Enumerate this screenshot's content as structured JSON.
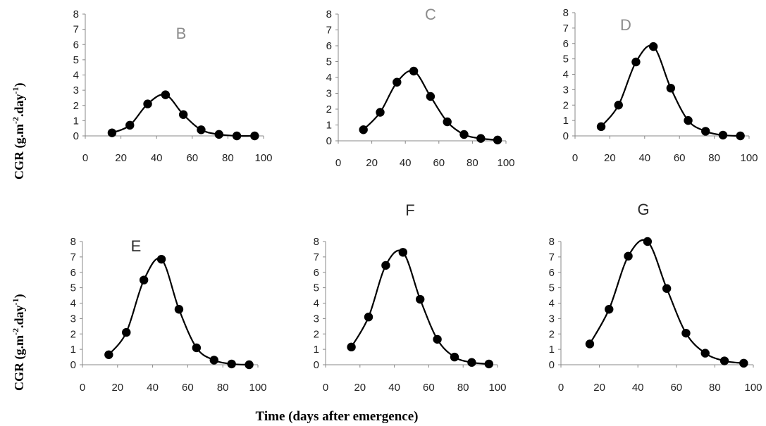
{
  "figure": {
    "ylabel": {
      "base": "CGR (g.m",
      "exp1": "-2",
      "mid": ".day",
      "exp2": "-1",
      "end": ")"
    },
    "xlabel": "Time (days after emergence)",
    "colors": {
      "line": "#000000",
      "marker": "#000000",
      "axis": "#888888",
      "label_gray": "#8c8c8c",
      "label_dark": "#2a2a2a"
    }
  },
  "chart_data": [
    {
      "type": "line",
      "title": "B",
      "x": [
        15,
        25,
        35,
        45,
        55,
        65,
        75,
        85,
        95
      ],
      "values": [
        0.2,
        0.7,
        2.1,
        2.7,
        1.4,
        0.4,
        0.1,
        0.0,
        0.0
      ],
      "xlim": [
        0,
        100
      ],
      "ylim": [
        0,
        8
      ],
      "xticks": [
        0,
        20,
        40,
        60,
        80,
        100
      ],
      "yticks": [
        0,
        1,
        2,
        3,
        4,
        5,
        6,
        7,
        8
      ],
      "grid": false
    },
    {
      "type": "line",
      "title": "C",
      "x": [
        15,
        25,
        35,
        45,
        55,
        65,
        75,
        85,
        95
      ],
      "values": [
        0.7,
        1.8,
        3.7,
        4.4,
        2.8,
        1.2,
        0.4,
        0.15,
        0.05
      ],
      "xlim": [
        0,
        100
      ],
      "ylim": [
        0,
        8
      ],
      "xticks": [
        0,
        20,
        40,
        60,
        80,
        100
      ],
      "yticks": [
        0,
        1,
        2,
        3,
        4,
        5,
        6,
        7,
        8
      ],
      "grid": false
    },
    {
      "type": "line",
      "title": "D",
      "x": [
        15,
        25,
        35,
        45,
        55,
        65,
        75,
        85,
        95
      ],
      "values": [
        0.6,
        2.0,
        4.8,
        5.8,
        3.1,
        1.0,
        0.3,
        0.05,
        0.0
      ],
      "xlim": [
        0,
        100
      ],
      "ylim": [
        0,
        8
      ],
      "xticks": [
        0,
        20,
        40,
        60,
        80,
        100
      ],
      "yticks": [
        0,
        1,
        2,
        3,
        4,
        5,
        6,
        7,
        8
      ],
      "grid": false
    },
    {
      "type": "line",
      "title": "E",
      "x": [
        15,
        25,
        35,
        45,
        55,
        65,
        75,
        85,
        95
      ],
      "values": [
        0.65,
        2.1,
        5.5,
        6.85,
        3.6,
        1.1,
        0.3,
        0.05,
        0.0
      ],
      "xlim": [
        0,
        100
      ],
      "ylim": [
        0,
        8
      ],
      "xticks": [
        0,
        20,
        40,
        60,
        80,
        100
      ],
      "yticks": [
        0,
        1,
        2,
        3,
        4,
        5,
        6,
        7,
        8
      ],
      "grid": false
    },
    {
      "type": "line",
      "title": "F",
      "x": [
        15,
        25,
        35,
        45,
        55,
        65,
        75,
        85,
        95
      ],
      "values": [
        1.15,
        3.1,
        6.45,
        7.3,
        4.25,
        1.65,
        0.5,
        0.15,
        0.05
      ],
      "xlim": [
        0,
        100
      ],
      "ylim": [
        0,
        8
      ],
      "xticks": [
        0,
        20,
        40,
        60,
        80,
        100
      ],
      "yticks": [
        0,
        1,
        2,
        3,
        4,
        5,
        6,
        7,
        8
      ],
      "grid": false
    },
    {
      "type": "line",
      "title": "G",
      "x": [
        15,
        25,
        35,
        45,
        55,
        65,
        75,
        85,
        95
      ],
      "values": [
        1.35,
        3.6,
        7.05,
        8.0,
        4.95,
        2.05,
        0.75,
        0.25,
        0.1
      ],
      "xlim": [
        0,
        100
      ],
      "ylim": [
        0,
        8
      ],
      "xticks": [
        0,
        20,
        40,
        60,
        80,
        100
      ],
      "yticks": [
        0,
        1,
        2,
        3,
        4,
        5,
        6,
        7,
        8
      ],
      "grid": false
    }
  ]
}
